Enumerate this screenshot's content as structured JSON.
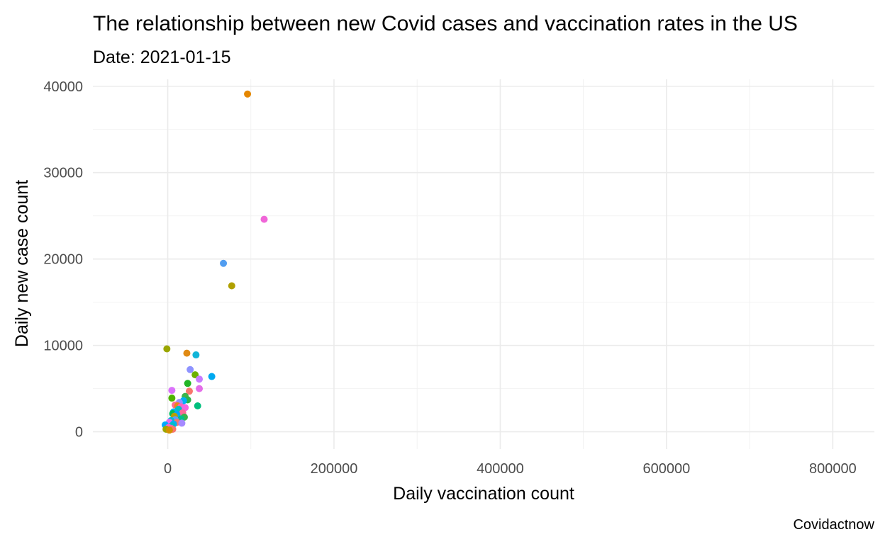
{
  "chart_data": {
    "type": "scatter",
    "title": "The relationship between new Covid cases and vaccination rates in the US",
    "subtitle": "Date: 2021-01-15",
    "xlabel": "Daily vaccination count",
    "ylabel": "Daily new case count",
    "caption": "Covidactnow",
    "xlim": [
      -90000,
      850000
    ],
    "ylim": [
      -2000,
      40800
    ],
    "x_ticks": [
      0,
      200000,
      400000,
      600000,
      800000
    ],
    "x_tick_labels": [
      "0",
      "200000",
      "400000",
      "600000",
      "800000"
    ],
    "y_ticks": [
      0,
      10000,
      20000,
      30000,
      40000
    ],
    "y_tick_labels": [
      "0",
      "10000",
      "20000",
      "30000",
      "40000"
    ],
    "grid": true,
    "legend": "none",
    "points": [
      {
        "x": 96000,
        "y": 39100,
        "color": "#e58700"
      },
      {
        "x": 116000,
        "y": 24600,
        "color": "#f066d8"
      },
      {
        "x": 67000,
        "y": 19500,
        "color": "#519df0"
      },
      {
        "x": 77000,
        "y": 16900,
        "color": "#b0a000"
      },
      {
        "x": -1000,
        "y": 9600,
        "color": "#9aa600"
      },
      {
        "x": 23000,
        "y": 9100,
        "color": "#e08a13"
      },
      {
        "x": 34000,
        "y": 8900,
        "color": "#11b5d8"
      },
      {
        "x": 27000,
        "y": 7200,
        "color": "#8e93ff"
      },
      {
        "x": 33000,
        "y": 6600,
        "color": "#6bb100"
      },
      {
        "x": 53000,
        "y": 6400,
        "color": "#00a9f0"
      },
      {
        "x": 38000,
        "y": 6100,
        "color": "#c77cff"
      },
      {
        "x": 24000,
        "y": 5600,
        "color": "#22b525"
      },
      {
        "x": 38000,
        "y": 5000,
        "color": "#e46ee8"
      },
      {
        "x": 5000,
        "y": 4800,
        "color": "#db72fb"
      },
      {
        "x": 26000,
        "y": 4700,
        "color": "#f8766d"
      },
      {
        "x": 21000,
        "y": 4100,
        "color": "#3cb44b"
      },
      {
        "x": 5000,
        "y": 3900,
        "color": "#4eb300"
      },
      {
        "x": 24000,
        "y": 3700,
        "color": "#2cb34a"
      },
      {
        "x": 19000,
        "y": 3600,
        "color": "#00b0f6"
      },
      {
        "x": 14000,
        "y": 3400,
        "color": "#9590ff"
      },
      {
        "x": 9000,
        "y": 3100,
        "color": "#ff6c91"
      },
      {
        "x": 12000,
        "y": 3000,
        "color": "#e7861b"
      },
      {
        "x": 36000,
        "y": 3000,
        "color": "#00bf7d"
      },
      {
        "x": 16000,
        "y": 2900,
        "color": "#ff62bc"
      },
      {
        "x": 21000,
        "y": 2800,
        "color": "#f564e3"
      },
      {
        "x": 13000,
        "y": 2600,
        "color": "#00bfc4"
      },
      {
        "x": 7000,
        "y": 2300,
        "color": "#00b8e7"
      },
      {
        "x": 18000,
        "y": 2200,
        "color": "#ff6a98"
      },
      {
        "x": 6000,
        "y": 2100,
        "color": "#00bd5c"
      },
      {
        "x": 11000,
        "y": 2000,
        "color": "#00a5ff"
      },
      {
        "x": 8000,
        "y": 1800,
        "color": "#b79f00"
      },
      {
        "x": 20000,
        "y": 1700,
        "color": "#3bb44a"
      },
      {
        "x": 16000,
        "y": 1500,
        "color": "#00c08b"
      },
      {
        "x": 9000,
        "y": 1400,
        "color": "#619cff"
      },
      {
        "x": 4000,
        "y": 1300,
        "color": "#00bcd8"
      },
      {
        "x": 11000,
        "y": 1100,
        "color": "#f8766d"
      },
      {
        "x": 2000,
        "y": 1100,
        "color": "#e76bf3"
      },
      {
        "x": 17000,
        "y": 1000,
        "color": "#a58aff"
      },
      {
        "x": 7000,
        "y": 900,
        "color": "#00b0f6"
      },
      {
        "x": -3000,
        "y": 800,
        "color": "#00a9ff"
      },
      {
        "x": 5000,
        "y": 700,
        "color": "#00bfc4"
      },
      {
        "x": 1000,
        "y": 500,
        "color": "#fd61d1"
      },
      {
        "x": 4000,
        "y": 400,
        "color": "#ff62bc"
      },
      {
        "x": 6000,
        "y": 300,
        "color": "#f8766d"
      },
      {
        "x": -2000,
        "y": 300,
        "color": "#9da700"
      },
      {
        "x": 2000,
        "y": 200,
        "color": "#d39200"
      }
    ]
  }
}
